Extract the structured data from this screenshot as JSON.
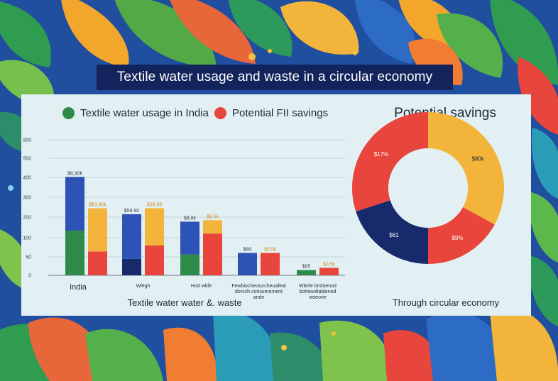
{
  "header": {
    "title": "Textile water usage and waste in a circular economy"
  },
  "legend": {
    "items": [
      {
        "label": "Textile water usage in India",
        "color": "#2e8b4a"
      },
      {
        "label": "Potential FII savings",
        "color": "#e8453c"
      }
    ]
  },
  "donut": {
    "title": "Potential savings",
    "caption": "Through circular economy"
  },
  "chart_data": [
    {
      "type": "bar",
      "title": "",
      "xlabel": "Textile water water &. waste",
      "ylabel": "",
      "ylim": [
        0,
        900
      ],
      "yticks": [
        "0",
        "50",
        "100",
        "200",
        "300",
        "400",
        "500",
        "900"
      ],
      "categories": [
        "India",
        "Wlegh",
        "Hod wkfe",
        "Fewbiocheuturcheuafeal dorcch consumoment ande",
        "Wlerle bmhtenod boheoofiabloned woeorie"
      ],
      "groups": [
        {
          "category": "India",
          "bars": [
            {
              "stack": [
                {
                  "value": 300,
                  "color": "#2e8b4a"
                },
                {
                  "value": 360,
                  "color": "#2c53b5"
                }
              ],
              "label": "$8,90k"
            },
            {
              "stack": [
                {
                  "value": 160,
                  "color": "#e8453c"
                },
                {
                  "value": 290,
                  "color": "#f2b43a"
                }
              ],
              "label": "$$3,90k"
            }
          ]
        },
        {
          "category": "Wlegh",
          "bars": [
            {
              "stack": [
                {
                  "value": 110,
                  "color": "#172a6b"
                },
                {
                  "value": 300,
                  "color": "#2c53b5"
                }
              ],
              "label": "$58 90"
            },
            {
              "stack": [
                {
                  "value": 200,
                  "color": "#e8453c"
                },
                {
                  "value": 250,
                  "color": "#f2b43a"
                }
              ],
              "label": "$58,58"
            }
          ]
        },
        {
          "category": "Hod wkfe",
          "bars": [
            {
              "stack": [
                {
                  "value": 140,
                  "color": "#2e8b4a"
                },
                {
                  "value": 220,
                  "color": "#2c53b5"
                }
              ],
              "label": "$8,8k"
            },
            {
              "stack": [
                {
                  "value": 280,
                  "color": "#e8453c"
                },
                {
                  "value": 90,
                  "color": "#f2b43a"
                }
              ],
              "label": "$8,5k"
            }
          ]
        },
        {
          "category": "Fewbiocheuturcheuafeal dorcch consumoment ande",
          "bars": [
            {
              "stack": [
                {
                  "value": 150,
                  "color": "#2c53b5"
                }
              ],
              "label": "$80"
            },
            {
              "stack": [
                {
                  "value": 150,
                  "color": "#e8453c"
                }
              ],
              "label": "$0,5k"
            }
          ]
        },
        {
          "category": "Wlerle bmhtenod boheoofiabloned woeorie",
          "bars": [
            {
              "stack": [
                {
                  "value": 35,
                  "color": "#2e8b4a"
                }
              ],
              "label": "$95"
            },
            {
              "stack": [
                {
                  "value": 50,
                  "color": "#e8453c"
                }
              ],
              "label": "$0,5k"
            }
          ]
        }
      ]
    },
    {
      "type": "pie",
      "title": "Potential savings",
      "donut": true,
      "slices": [
        {
          "label": "$80k",
          "value": 33,
          "color": "#f2b43a",
          "text_color": "#1c2636"
        },
        {
          "label": "$9%",
          "value": 17,
          "color": "#e8453c",
          "text_color": "#ffffff"
        },
        {
          "label": "$61",
          "value": 20,
          "color": "#172a6b",
          "text_color": "#ffffff"
        },
        {
          "label": "$17%",
          "value": 30,
          "color": "#e8453c",
          "text_color": "#ffffff"
        }
      ]
    }
  ]
}
